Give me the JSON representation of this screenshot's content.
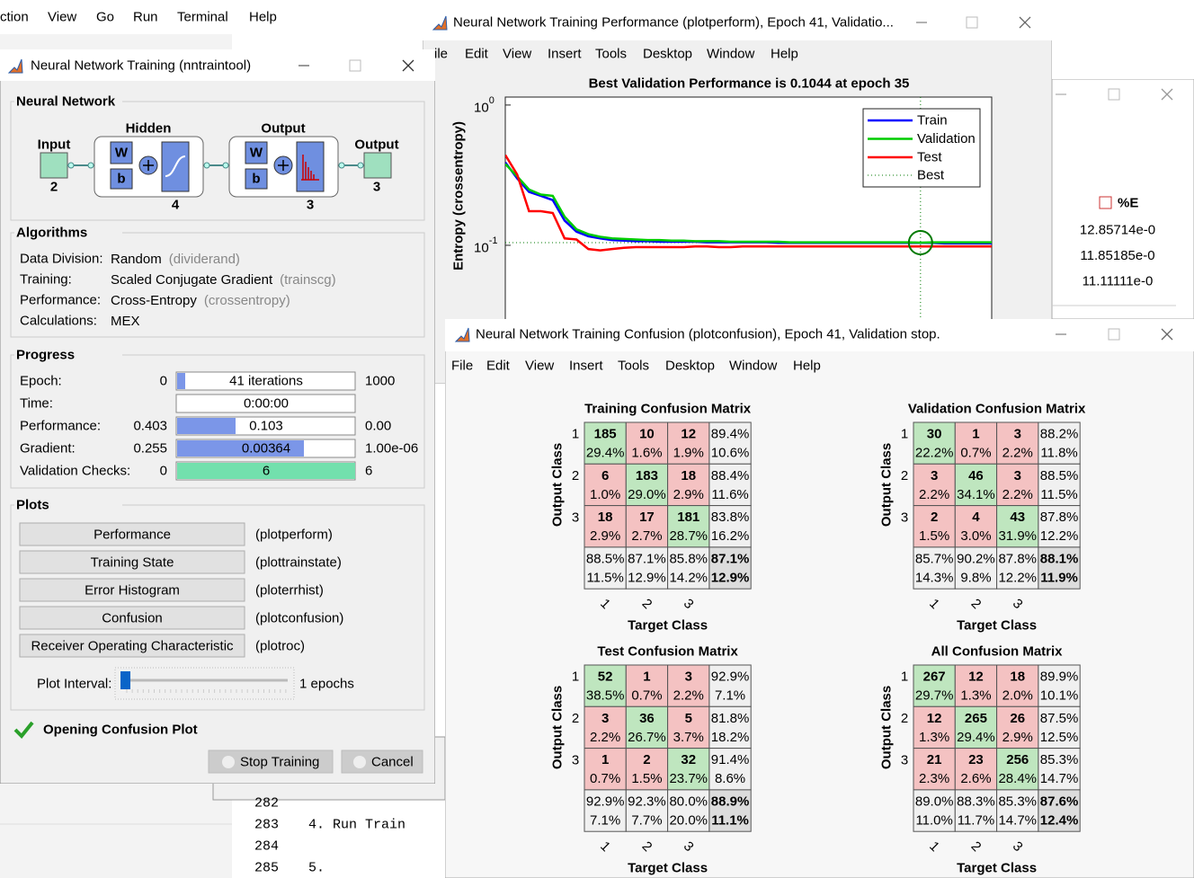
{
  "background": {
    "menu": [
      "ction",
      "View",
      "Go",
      "Run",
      "Terminal",
      "Help"
    ],
    "editor": [
      {
        "number": "282"
      },
      {
        "number": "283",
        "code": "4. Run Train"
      },
      {
        "number": "284"
      },
      {
        "number": "285",
        "code": "5."
      }
    ]
  },
  "nntraintool": {
    "title": "Neural Network Training (nntraintool)",
    "network": {
      "heading": "Neural Network",
      "hidden": "Hidden",
      "output": "Output",
      "input_label": "Input",
      "output_label": "Output",
      "input_size": "2",
      "hidden_size": "4",
      "output_size": "3",
      "result_size": "3",
      "weight": "W",
      "bias": "b"
    },
    "algorithms": {
      "heading": "Algorithms",
      "rows": [
        {
          "label": "Data Division:",
          "value": "Random",
          "function": "(dividerand)"
        },
        {
          "label": "Training:",
          "value": "Scaled Conjugate Gradient",
          "function": "(trainscg)"
        },
        {
          "label": "Performance:",
          "value": "Cross-Entropy",
          "function": "(crossentropy)"
        },
        {
          "label": "Calculations:",
          "value": "MEX"
        }
      ]
    },
    "progress": {
      "heading": "Progress",
      "rows": [
        {
          "label": "Epoch:",
          "start": "0",
          "current": "41 iterations",
          "end": "1000"
        },
        {
          "label": "Time:",
          "current": "0:00:00"
        },
        {
          "label": "Performance:",
          "start": "0.403",
          "current": "0.103",
          "end": "0.00"
        },
        {
          "label": "Gradient:",
          "start": "0.255",
          "current": "0.00364",
          "end": "1.00e-06"
        },
        {
          "label": "Validation Checks:",
          "start": "0",
          "current": "6",
          "end": "6"
        }
      ]
    },
    "plots": {
      "heading": "Plots",
      "buttons": [
        {
          "label": "Performance",
          "function": "(plotperform)"
        },
        {
          "label": "Training State",
          "function": "(plottrainstate)"
        },
        {
          "label": "Error Histogram",
          "function": "(ploterrhist)"
        },
        {
          "label": "Confusion",
          "function": "(plotconfusion)"
        },
        {
          "label": "Receiver Operating Characteristic",
          "function": "(plotroc)"
        }
      ],
      "interval_label": "Plot Interval:",
      "interval": "1 epochs"
    },
    "status": "Opening Confusion Plot",
    "stop": "Stop Training",
    "cancel": "Cancel"
  },
  "perform_window": {
    "title": "Neural Network Training Performance (plotperform), Epoch 41, Validatio...",
    "menu": [
      "ile",
      "Edit",
      "View",
      "Insert",
      "Tools",
      "Desktop",
      "Window",
      "Help"
    ],
    "plot": {
      "type": "line",
      "title": "Best Validation Performance is 0.1044 at epoch 35",
      "ylabel": "Entropy  (crossentropy)",
      "log_y": true,
      "xlim": [
        0,
        41
      ],
      "ylim": [
        0.01,
        1.14
      ],
      "yticks": [
        {
          "value": 1,
          "label": "10",
          "exponent": "0"
        },
        {
          "value": 0.1,
          "label": "10",
          "exponent": "-1"
        }
      ],
      "x": [
        0,
        1,
        2,
        3,
        4,
        5,
        6,
        7,
        8,
        9,
        10,
        11,
        12,
        13,
        14,
        15,
        16,
        17,
        18,
        19,
        20,
        21,
        22,
        23,
        24,
        25,
        26,
        27,
        28,
        29,
        30,
        31,
        32,
        33,
        34,
        35,
        36,
        37,
        38,
        39,
        40,
        41
      ],
      "series": [
        {
          "name": "Train",
          "color": "#0000ff",
          "values": [
            0.39,
            0.3,
            0.24,
            0.225,
            0.21,
            0.15,
            0.125,
            0.116,
            0.112,
            0.109,
            0.108,
            0.107,
            0.107,
            0.106,
            0.106,
            0.106,
            0.106,
            0.105,
            0.105,
            0.105,
            0.105,
            0.105,
            0.105,
            0.104,
            0.104,
            0.104,
            0.104,
            0.104,
            0.104,
            0.104,
            0.104,
            0.104,
            0.104,
            0.104,
            0.104,
            0.104,
            0.104,
            0.103,
            0.103,
            0.103,
            0.103,
            0.103
          ]
        },
        {
          "name": "Validation",
          "color": "#00cc00",
          "values": [
            0.38,
            0.31,
            0.25,
            0.23,
            0.225,
            0.16,
            0.13,
            0.12,
            0.115,
            0.112,
            0.111,
            0.11,
            0.109,
            0.109,
            0.108,
            0.108,
            0.107,
            0.107,
            0.107,
            0.106,
            0.106,
            0.106,
            0.106,
            0.106,
            0.105,
            0.105,
            0.105,
            0.105,
            0.105,
            0.105,
            0.105,
            0.105,
            0.105,
            0.105,
            0.105,
            0.1044,
            0.105,
            0.105,
            0.105,
            0.105,
            0.105,
            0.105
          ]
        },
        {
          "name": "Test",
          "color": "#ff0000",
          "values": [
            0.44,
            0.32,
            0.175,
            0.175,
            0.17,
            0.112,
            0.11,
            0.094,
            0.092,
            0.094,
            0.096,
            0.097,
            0.097,
            0.097,
            0.097,
            0.097,
            0.098,
            0.098,
            0.097,
            0.097,
            0.098,
            0.098,
            0.098,
            0.098,
            0.098,
            0.098,
            0.098,
            0.098,
            0.098,
            0.098,
            0.098,
            0.098,
            0.098,
            0.098,
            0.098,
            0.098,
            0.098,
            0.098,
            0.098,
            0.098,
            0.098,
            0.098
          ]
        }
      ],
      "best": {
        "name": "Best",
        "epoch": 35,
        "value": 0.1044,
        "color": "#007a00"
      }
    }
  },
  "table_window": {
    "column": "%E",
    "values": [
      "12.85714e-0",
      "11.85185e-0",
      "11.11111e-0"
    ]
  },
  "confusion_window": {
    "title": "Neural Network Training Confusion (plotconfusion), Epoch 41, Validation stop.",
    "menu": [
      "File",
      "Edit",
      "View",
      "Insert",
      "Tools",
      "Desktop",
      "Window",
      "Help"
    ],
    "output_label": "Output Class",
    "target_label": "Target Class",
    "classes": [
      "1",
      "2",
      "3"
    ],
    "matrices": [
      {
        "title": "Training Confusion Matrix",
        "cells": [
          [
            [
              185,
              "29.4%"
            ],
            [
              10,
              "1.6%"
            ],
            [
              12,
              "1.9%"
            ]
          ],
          [
            [
              6,
              "1.0%"
            ],
            [
              183,
              "29.0%"
            ],
            [
              18,
              "2.9%"
            ]
          ],
          [
            [
              18,
              "2.9%"
            ],
            [
              17,
              "2.7%"
            ],
            [
              181,
              "28.7%"
            ]
          ]
        ],
        "row_summary": [
          [
            "89.4%",
            "10.6%"
          ],
          [
            "88.4%",
            "11.6%"
          ],
          [
            "83.8%",
            "16.2%"
          ]
        ],
        "col_summary": [
          [
            "88.5%",
            "11.5%"
          ],
          [
            "87.1%",
            "12.9%"
          ],
          [
            "85.8%",
            "14.2%"
          ]
        ],
        "total": [
          "87.1%",
          "12.9%"
        ]
      },
      {
        "title": "Validation Confusion Matrix",
        "cells": [
          [
            [
              30,
              "22.2%"
            ],
            [
              1,
              "0.7%"
            ],
            [
              3,
              "2.2%"
            ]
          ],
          [
            [
              3,
              "2.2%"
            ],
            [
              46,
              "34.1%"
            ],
            [
              3,
              "2.2%"
            ]
          ],
          [
            [
              2,
              "1.5%"
            ],
            [
              4,
              "3.0%"
            ],
            [
              43,
              "31.9%"
            ]
          ]
        ],
        "row_summary": [
          [
            "88.2%",
            "11.8%"
          ],
          [
            "88.5%",
            "11.5%"
          ],
          [
            "87.8%",
            "12.2%"
          ]
        ],
        "col_summary": [
          [
            "85.7%",
            "14.3%"
          ],
          [
            "90.2%",
            "9.8%"
          ],
          [
            "87.8%",
            "12.2%"
          ]
        ],
        "total": [
          "88.1%",
          "11.9%"
        ]
      },
      {
        "title": "Test Confusion Matrix",
        "cells": [
          [
            [
              52,
              "38.5%"
            ],
            [
              1,
              "0.7%"
            ],
            [
              3,
              "2.2%"
            ]
          ],
          [
            [
              3,
              "2.2%"
            ],
            [
              36,
              "26.7%"
            ],
            [
              5,
              "3.7%"
            ]
          ],
          [
            [
              1,
              "0.7%"
            ],
            [
              2,
              "1.5%"
            ],
            [
              32,
              "23.7%"
            ]
          ]
        ],
        "row_summary": [
          [
            "92.9%",
            "7.1%"
          ],
          [
            "81.8%",
            "18.2%"
          ],
          [
            "91.4%",
            "8.6%"
          ]
        ],
        "col_summary": [
          [
            "92.9%",
            "7.1%"
          ],
          [
            "92.3%",
            "7.7%"
          ],
          [
            "80.0%",
            "20.0%"
          ]
        ],
        "total": [
          "88.9%",
          "11.1%"
        ]
      },
      {
        "title": "All Confusion Matrix",
        "cells": [
          [
            [
              267,
              "29.7%"
            ],
            [
              12,
              "1.3%"
            ],
            [
              18,
              "2.0%"
            ]
          ],
          [
            [
              12,
              "1.3%"
            ],
            [
              265,
              "29.4%"
            ],
            [
              26,
              "2.9%"
            ]
          ],
          [
            [
              21,
              "2.3%"
            ],
            [
              23,
              "2.6%"
            ],
            [
              256,
              "28.4%"
            ]
          ]
        ],
        "row_summary": [
          [
            "89.9%",
            "10.1%"
          ],
          [
            "87.5%",
            "12.5%"
          ],
          [
            "85.3%",
            "14.7%"
          ]
        ],
        "col_summary": [
          [
            "89.0%",
            "11.0%"
          ],
          [
            "88.3%",
            "11.7%"
          ],
          [
            "85.3%",
            "14.7%"
          ]
        ],
        "total": [
          "87.6%",
          "12.4%"
        ]
      }
    ]
  }
}
